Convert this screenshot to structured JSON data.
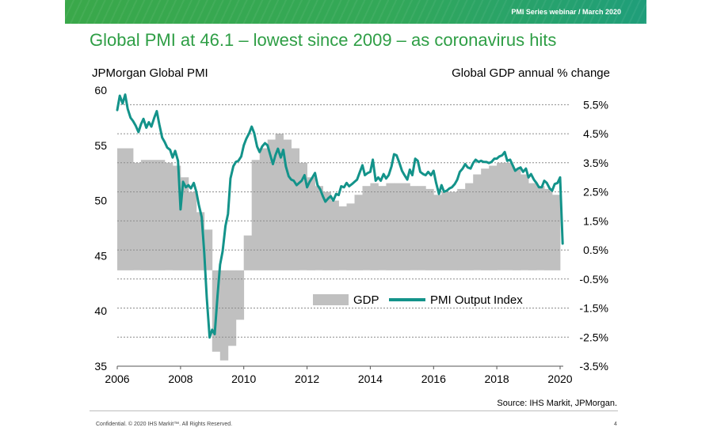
{
  "banner": {
    "text": "PMI Series webinar / March 2020"
  },
  "slide": {
    "title": "Global PMI at 46.1 – lowest since 2009 – as coronavirus hits",
    "source": "Source: IHS Markit, JPMorgan.",
    "footer": "Confidential. © 2020 IHS Markit™. All Rights Reserved.",
    "page_number": "4"
  },
  "colors": {
    "banner": "#33a858",
    "title": "#2e9e45",
    "pmi_line": "#13938a",
    "gdp_bars": "#c0c0c0"
  },
  "chart_data": {
    "type": "line",
    "left_axis": {
      "label": "JPMorgan Global PMI",
      "min": 35,
      "max": 60,
      "ticks": [
        60,
        55,
        50,
        45,
        40,
        35
      ]
    },
    "right_axis": {
      "label": "Global GDP annual % change",
      "min": -3.5,
      "max": 6,
      "ticks": [
        "5.5%",
        "4.5%",
        "3.5%",
        "2.5%",
        "1.5%",
        "0.5%",
        "-0.5%",
        "-1.5%",
        "-2.5%",
        "-3.5%"
      ]
    },
    "x_axis": {
      "min": 2006,
      "max": 2020.1,
      "ticks": [
        "2006",
        "2008",
        "2010",
        "2012",
        "2014",
        "2016",
        "2018",
        "2020"
      ]
    },
    "grid": "horizontal dashed, right-axis ticks",
    "legend": {
      "position": "bottom-center",
      "entries": [
        "GDP",
        "PMI Output Index"
      ]
    },
    "series": [
      {
        "name": "GDP",
        "kind": "step-area",
        "axis": "right",
        "points": [
          [
            2006.0,
            4.0
          ],
          [
            2006.5,
            3.5
          ],
          [
            2006.75,
            3.6
          ],
          [
            2007.0,
            3.6
          ],
          [
            2007.25,
            3.6
          ],
          [
            2007.5,
            3.5
          ],
          [
            2007.75,
            3.4
          ],
          [
            2008.0,
            3.0
          ],
          [
            2008.25,
            2.5
          ],
          [
            2008.5,
            1.8
          ],
          [
            2008.75,
            1.2
          ],
          [
            2009.0,
            -3.0
          ],
          [
            2009.25,
            -3.3
          ],
          [
            2009.5,
            -2.8
          ],
          [
            2009.75,
            -1.9
          ],
          [
            2010.0,
            1.0
          ],
          [
            2010.25,
            3.6
          ],
          [
            2010.5,
            4.0
          ],
          [
            2010.75,
            4.3
          ],
          [
            2011.0,
            4.5
          ],
          [
            2011.25,
            4.3
          ],
          [
            2011.5,
            4.0
          ],
          [
            2011.75,
            3.5
          ],
          [
            2012.0,
            3.0
          ],
          [
            2012.25,
            2.7
          ],
          [
            2012.5,
            2.5
          ],
          [
            2012.75,
            2.2
          ],
          [
            2013.0,
            2.0
          ],
          [
            2013.25,
            2.1
          ],
          [
            2013.5,
            2.4
          ],
          [
            2013.75,
            2.7
          ],
          [
            2014.0,
            2.8
          ],
          [
            2014.25,
            2.7
          ],
          [
            2014.5,
            2.8
          ],
          [
            2014.75,
            2.8
          ],
          [
            2015.0,
            2.8
          ],
          [
            2015.25,
            2.7
          ],
          [
            2015.5,
            2.7
          ],
          [
            2015.75,
            2.6
          ],
          [
            2016.0,
            2.4
          ],
          [
            2016.25,
            2.5
          ],
          [
            2016.5,
            2.5
          ],
          [
            2016.75,
            2.6
          ],
          [
            2017.0,
            2.8
          ],
          [
            2017.25,
            3.1
          ],
          [
            2017.5,
            3.3
          ],
          [
            2017.75,
            3.4
          ],
          [
            2018.0,
            3.5
          ],
          [
            2018.25,
            3.5
          ],
          [
            2018.5,
            3.3
          ],
          [
            2018.75,
            3.1
          ],
          [
            2019.0,
            2.8
          ],
          [
            2019.25,
            2.7
          ],
          [
            2019.5,
            2.6
          ],
          [
            2019.75,
            2.4
          ],
          [
            2019.95,
            2.4
          ]
        ]
      },
      {
        "name": "PMI Output Index",
        "axis": "left",
        "points": [
          [
            2006.0,
            58.2
          ],
          [
            2006.08,
            59.5
          ],
          [
            2006.17,
            58.8
          ],
          [
            2006.25,
            59.6
          ],
          [
            2006.33,
            58.3
          ],
          [
            2006.42,
            57.5
          ],
          [
            2006.5,
            57.2
          ],
          [
            2006.58,
            56.8
          ],
          [
            2006.67,
            56.2
          ],
          [
            2006.75,
            56.9
          ],
          [
            2006.83,
            57.4
          ],
          [
            2006.92,
            56.6
          ],
          [
            2007.0,
            57.1
          ],
          [
            2007.08,
            56.7
          ],
          [
            2007.17,
            57.5
          ],
          [
            2007.25,
            58.1
          ],
          [
            2007.33,
            56.9
          ],
          [
            2007.42,
            55.7
          ],
          [
            2007.5,
            55.3
          ],
          [
            2007.58,
            54.8
          ],
          [
            2007.67,
            54.6
          ],
          [
            2007.75,
            53.9
          ],
          [
            2007.83,
            54.5
          ],
          [
            2007.92,
            53.6
          ],
          [
            2008.0,
            49.2
          ],
          [
            2008.08,
            51.7
          ],
          [
            2008.17,
            51.2
          ],
          [
            2008.25,
            51.4
          ],
          [
            2008.33,
            51.1
          ],
          [
            2008.42,
            51.6
          ],
          [
            2008.5,
            50.8
          ],
          [
            2008.58,
            49.6
          ],
          [
            2008.67,
            48.5
          ],
          [
            2008.75,
            45.3
          ],
          [
            2008.83,
            41.2
          ],
          [
            2008.92,
            37.6
          ],
          [
            2009.0,
            38.3
          ],
          [
            2009.08,
            37.9
          ],
          [
            2009.17,
            41.4
          ],
          [
            2009.25,
            44.2
          ],
          [
            2009.33,
            45.4
          ],
          [
            2009.42,
            47.7
          ],
          [
            2009.5,
            48.8
          ],
          [
            2009.58,
            52.0
          ],
          [
            2009.67,
            53.1
          ],
          [
            2009.75,
            53.5
          ],
          [
            2009.83,
            53.6
          ],
          [
            2009.92,
            54.0
          ],
          [
            2010.0,
            55.0
          ],
          [
            2010.08,
            55.6
          ],
          [
            2010.17,
            56.1
          ],
          [
            2010.25,
            56.7
          ],
          [
            2010.33,
            56.1
          ],
          [
            2010.42,
            54.9
          ],
          [
            2010.5,
            54.4
          ],
          [
            2010.58,
            54.9
          ],
          [
            2010.67,
            55.2
          ],
          [
            2010.75,
            55.0
          ],
          [
            2010.83,
            54.2
          ],
          [
            2010.92,
            53.3
          ],
          [
            2011.0,
            54.1
          ],
          [
            2011.08,
            54.7
          ],
          [
            2011.17,
            53.9
          ],
          [
            2011.25,
            54.6
          ],
          [
            2011.33,
            53.1
          ],
          [
            2011.42,
            52.2
          ],
          [
            2011.5,
            51.9
          ],
          [
            2011.58,
            51.8
          ],
          [
            2011.67,
            51.4
          ],
          [
            2011.75,
            51.6
          ],
          [
            2011.83,
            51.8
          ],
          [
            2011.92,
            52.3
          ],
          [
            2012.0,
            51.2
          ],
          [
            2012.08,
            51.7
          ],
          [
            2012.17,
            52.1
          ],
          [
            2012.25,
            52.5
          ],
          [
            2012.33,
            51.4
          ],
          [
            2012.42,
            51.0
          ],
          [
            2012.5,
            50.4
          ],
          [
            2012.58,
            49.9
          ],
          [
            2012.67,
            50.2
          ],
          [
            2012.75,
            50.4
          ],
          [
            2012.83,
            50.0
          ],
          [
            2012.92,
            50.6
          ],
          [
            2013.0,
            50.5
          ],
          [
            2013.08,
            51.3
          ],
          [
            2013.17,
            51.2
          ],
          [
            2013.25,
            51.6
          ],
          [
            2013.33,
            51.3
          ],
          [
            2013.42,
            51.5
          ],
          [
            2013.5,
            51.7
          ],
          [
            2013.58,
            51.9
          ],
          [
            2013.67,
            52.6
          ],
          [
            2013.75,
            53.2
          ],
          [
            2013.83,
            52.3
          ],
          [
            2013.92,
            52.5
          ],
          [
            2014.0,
            52.6
          ],
          [
            2014.08,
            53.7
          ],
          [
            2014.17,
            51.8
          ],
          [
            2014.25,
            52.1
          ],
          [
            2014.33,
            51.8
          ],
          [
            2014.42,
            52.4
          ],
          [
            2014.5,
            52.0
          ],
          [
            2014.58,
            52.3
          ],
          [
            2014.67,
            53.1
          ],
          [
            2014.75,
            54.2
          ],
          [
            2014.83,
            54.1
          ],
          [
            2014.92,
            53.4
          ],
          [
            2015.0,
            52.7
          ],
          [
            2015.08,
            52.3
          ],
          [
            2015.17,
            51.9
          ],
          [
            2015.25,
            52.8
          ],
          [
            2015.33,
            52.3
          ],
          [
            2015.42,
            53.8
          ],
          [
            2015.5,
            53.6
          ],
          [
            2015.58,
            52.6
          ],
          [
            2015.67,
            52.4
          ],
          [
            2015.75,
            52.3
          ],
          [
            2015.83,
            52.6
          ],
          [
            2015.92,
            52.3
          ],
          [
            2016.0,
            52.7
          ],
          [
            2016.08,
            51.6
          ],
          [
            2016.17,
            50.6
          ],
          [
            2016.25,
            51.4
          ],
          [
            2016.33,
            50.8
          ],
          [
            2016.42,
            50.9
          ],
          [
            2016.5,
            51.1
          ],
          [
            2016.58,
            51.2
          ],
          [
            2016.67,
            51.5
          ],
          [
            2016.75,
            51.9
          ],
          [
            2016.83,
            52.6
          ],
          [
            2016.92,
            52.9
          ],
          [
            2017.0,
            53.3
          ],
          [
            2017.08,
            53.0
          ],
          [
            2017.17,
            52.9
          ],
          [
            2017.25,
            53.4
          ],
          [
            2017.33,
            53.7
          ],
          [
            2017.42,
            53.5
          ],
          [
            2017.5,
            53.6
          ],
          [
            2017.58,
            53.5
          ],
          [
            2017.67,
            53.5
          ],
          [
            2017.75,
            53.4
          ],
          [
            2017.83,
            53.5
          ],
          [
            2017.92,
            53.8
          ],
          [
            2018.0,
            53.8
          ],
          [
            2018.08,
            54.0
          ],
          [
            2018.17,
            54.1
          ],
          [
            2018.25,
            54.4
          ],
          [
            2018.33,
            53.6
          ],
          [
            2018.42,
            53.7
          ],
          [
            2018.5,
            53.2
          ],
          [
            2018.58,
            52.7
          ],
          [
            2018.67,
            52.9
          ],
          [
            2018.75,
            53.0
          ],
          [
            2018.83,
            52.6
          ],
          [
            2018.92,
            52.9
          ],
          [
            2019.0,
            52.1
          ],
          [
            2019.08,
            52.4
          ],
          [
            2019.17,
            51.9
          ],
          [
            2019.25,
            51.6
          ],
          [
            2019.33,
            51.2
          ],
          [
            2019.42,
            51.2
          ],
          [
            2019.5,
            51.8
          ],
          [
            2019.58,
            51.6
          ],
          [
            2019.67,
            51.1
          ],
          [
            2019.75,
            50.9
          ],
          [
            2019.83,
            51.5
          ],
          [
            2019.92,
            51.6
          ],
          [
            2020.0,
            52.1
          ],
          [
            2020.08,
            46.1
          ]
        ]
      }
    ]
  }
}
